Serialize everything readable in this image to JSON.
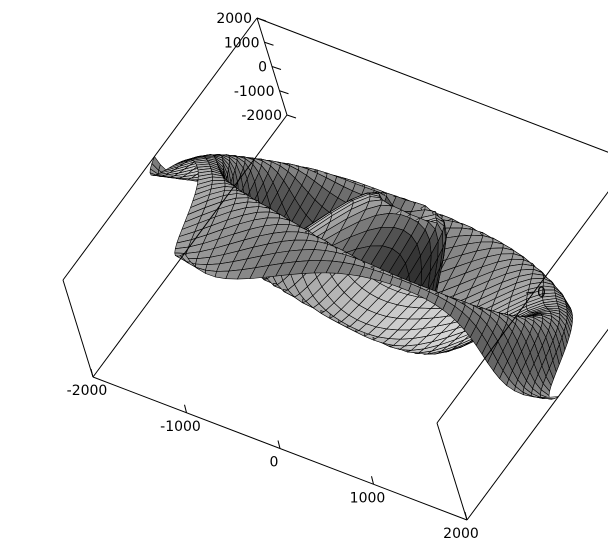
{
  "chart_data": {
    "type": "surface3d",
    "title": "",
    "xlabel": "",
    "ylabel": "",
    "zlabel": "",
    "x_range": [
      -2000,
      2000
    ],
    "y_range": [
      -2000,
      2000
    ],
    "z_range": [
      -1,
      1
    ],
    "grid_resolution": 41,
    "surface_shading": "grayscale",
    "surface_description": "radially symmetric rippled surface, concentric ridges around central peak",
    "surface_function": {
      "form": "sin(k * sqrt(x^2 + y^2)) / (1 + d * sqrt(x^2 + y^2)) + w * sin(m * x) * sin(m * y)",
      "k": 0.0042,
      "d": 0.0008,
      "w": 0.08,
      "m": 0.0016
    },
    "x_axis": {
      "tick_values": [
        -2000,
        -1000,
        0,
        1000,
        2000
      ],
      "tick_labels": [
        "-2000",
        "-1000",
        "0",
        "1000",
        "2000"
      ]
    },
    "y_axis": {
      "tick_values": [
        -2000,
        -1000,
        0,
        1000,
        2000
      ],
      "tick_labels": [
        "-2000",
        "-1000",
        "0",
        "1000",
        "2000"
      ]
    },
    "z_axis": {
      "tick_values": [
        0
      ],
      "tick_labels": [
        "0"
      ]
    }
  }
}
